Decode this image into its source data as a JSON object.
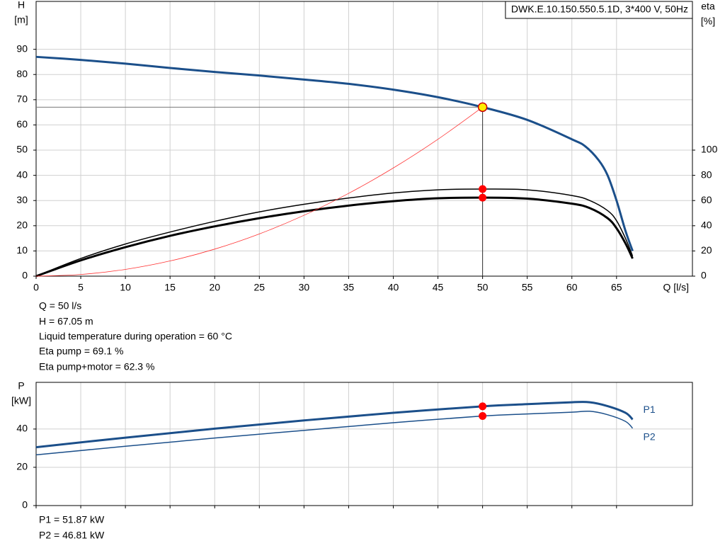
{
  "chart_data": [
    {
      "type": "line",
      "title": "DWK.E.10.150.550.5.1D, 3*400  V, 50Hz",
      "ylabel": [
        "H",
        "[m]"
      ],
      "y2label": [
        "eta",
        "[%]"
      ],
      "xlabel": "Q [l/s]",
      "xlim": [
        0,
        73.5
      ],
      "ylim": [
        0,
        109
      ],
      "y2lim": [
        0,
        218
      ],
      "xticks": [
        0,
        5,
        10,
        15,
        20,
        25,
        30,
        35,
        40,
        45,
        50,
        55,
        60,
        65
      ],
      "yticks": [
        0,
        10,
        20,
        30,
        40,
        50,
        60,
        70,
        80,
        90
      ],
      "y2ticks": [
        0,
        20,
        40,
        60,
        80,
        100
      ],
      "grid": true,
      "show_xtick_labels": true,
      "series": [
        {
          "color": "#1b4f8a",
          "line_width": 3,
          "axis": "y",
          "x": [
            0,
            5,
            10,
            15,
            20,
            25,
            30,
            35,
            40,
            45,
            50,
            55,
            60,
            61.5,
            63,
            64,
            65,
            66,
            66.8
          ],
          "values": [
            87,
            85.8,
            84.3,
            82.6,
            81,
            79.6,
            78,
            76.3,
            74,
            71,
            67.05,
            62,
            54.3,
            51.5,
            46,
            40,
            30,
            18,
            10
          ]
        },
        {
          "color": "#000000",
          "line_width": 1.5,
          "axis": "y2",
          "x": [
            0,
            5,
            10,
            15,
            20,
            25,
            30,
            35,
            40,
            45,
            50,
            55,
            60,
            62,
            64,
            65,
            66,
            66.8
          ],
          "values": [
            0,
            14,
            25.5,
            35,
            43.5,
            51,
            57,
            62,
            66,
            68.5,
            69.1,
            68.5,
            64,
            60,
            52,
            44,
            30,
            16
          ]
        },
        {
          "color": "#000000",
          "line_width": 3,
          "axis": "y2",
          "x": [
            0,
            5,
            10,
            15,
            20,
            25,
            30,
            35,
            40,
            45,
            50,
            55,
            60,
            62,
            64,
            65,
            66,
            66.8
          ],
          "values": [
            0,
            12.5,
            23,
            32,
            39.5,
            46,
            51.5,
            56,
            59.5,
            61.8,
            62.3,
            61.5,
            57.5,
            54,
            46,
            38,
            26,
            14
          ]
        },
        {
          "color": "#ff3333",
          "line_width": 0.8,
          "axis": "y",
          "x": [
            0,
            5,
            10,
            15,
            20,
            25,
            30,
            35,
            40,
            45,
            50
          ],
          "values": [
            0,
            0.67,
            2.68,
            6.03,
            10.73,
            16.76,
            24.14,
            32.85,
            42.91,
            54.31,
            67.05
          ]
        }
      ],
      "duty_point": {
        "x": 50,
        "y": 67.05,
        "color": "#ffee00",
        "stroke": "#cc0000"
      },
      "markers": [
        {
          "x": 50,
          "y": 69.1,
          "axis": "y2"
        },
        {
          "x": 50,
          "y": 62.3,
          "axis": "y2"
        }
      ],
      "marker_color": "#ff0000"
    },
    {
      "type": "line",
      "ylabel": [
        "P",
        "[kW]"
      ],
      "xlim": [
        0,
        73.5
      ],
      "ylim": [
        0,
        64.4
      ],
      "xticks": [
        0,
        5,
        10,
        15,
        20,
        25,
        30,
        35,
        40,
        45,
        50,
        55,
        60,
        65
      ],
      "yticks": [
        0,
        20,
        40
      ],
      "grid": true,
      "show_xtick_labels": false,
      "series": [
        {
          "name": "P1",
          "color": "#1b4f8a",
          "line_width": 3,
          "axis": "y",
          "x": [
            0,
            10,
            20,
            30,
            40,
            50,
            55,
            60,
            62,
            64,
            66,
            66.8
          ],
          "values": [
            30.5,
            35.5,
            40.2,
            44.5,
            48.5,
            51.87,
            53,
            54,
            54,
            52,
            48.5,
            45
          ]
        },
        {
          "name": "P2",
          "color": "#1b4f8a",
          "line_width": 1.5,
          "axis": "y",
          "x": [
            0,
            10,
            20,
            30,
            40,
            50,
            55,
            60,
            62,
            64,
            66,
            66.8
          ],
          "values": [
            26.5,
            31,
            35.3,
            39.3,
            43.3,
            46.81,
            47.9,
            48.8,
            49.3,
            47.5,
            44,
            40.4
          ]
        }
      ],
      "markers": [
        {
          "x": 50,
          "y": 51.87,
          "axis": "y"
        },
        {
          "x": 50,
          "y": 46.81,
          "axis": "y"
        }
      ],
      "marker_color": "#ff0000"
    }
  ],
  "operating_info": [
    "Q = 50 l/s",
    "H = 67.05 m",
    "Liquid temperature during operation = 60 °C",
    "Eta pump = 69.1 %",
    "Eta pump+motor = 62.3 %"
  ],
  "power_info": [
    "P1 = 51.87 kW",
    "P2 = 46.81 kW"
  ]
}
